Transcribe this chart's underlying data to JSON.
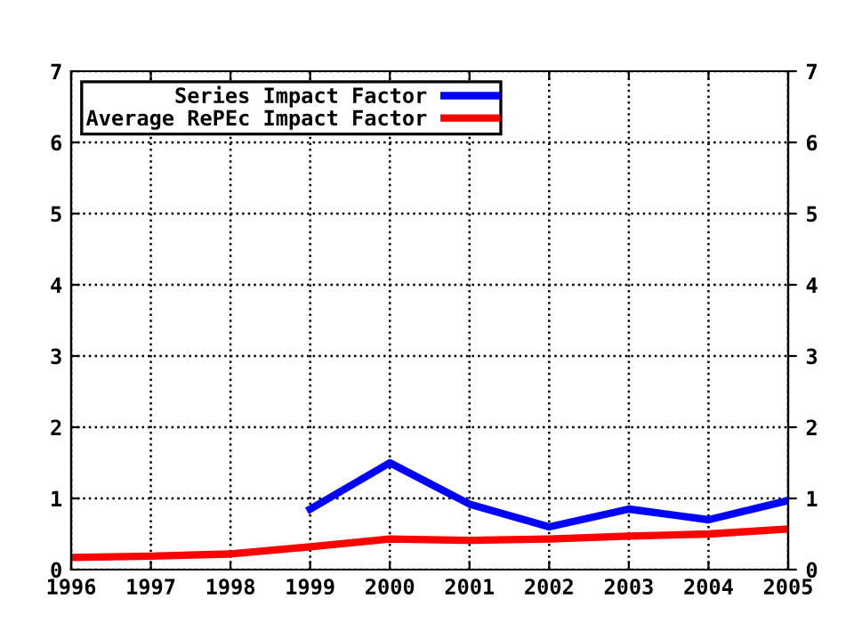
{
  "chart_data": {
    "type": "line",
    "x": [
      1996,
      1997,
      1998,
      1999,
      2000,
      2001,
      2002,
      2003,
      2004,
      2005
    ],
    "series": [
      {
        "name": "Series Impact Factor",
        "color": "#0000ff",
        "values": [
          null,
          null,
          null,
          0.85,
          1.5,
          0.92,
          0.6,
          0.85,
          0.7,
          0.97
        ]
      },
      {
        "name": "Average RePEc Impact Factor",
        "color": "#ff0000",
        "values": [
          0.17,
          0.19,
          0.22,
          0.32,
          0.43,
          0.41,
          0.43,
          0.47,
          0.5,
          0.57
        ]
      }
    ],
    "xlim": [
      1996,
      2005
    ],
    "xticks": [
      1996,
      1997,
      1998,
      1999,
      2000,
      2001,
      2002,
      2003,
      2004,
      2005
    ],
    "ylim": [
      0,
      7
    ],
    "yticks": [
      0,
      1,
      2,
      3,
      4,
      5,
      6,
      7
    ],
    "y2lim": [
      0,
      7
    ],
    "y2ticks": [
      0,
      1,
      2,
      3,
      4,
      5,
      6,
      7
    ],
    "grid": true,
    "line_style": "solid",
    "legend": "top left"
  }
}
